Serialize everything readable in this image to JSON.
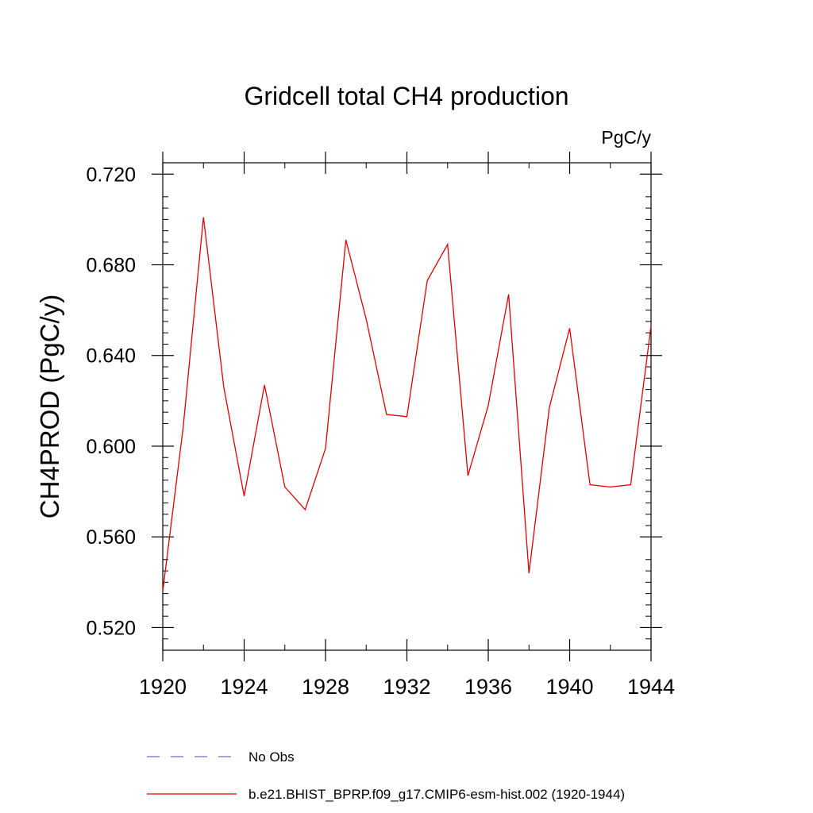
{
  "chart_data": {
    "type": "line",
    "title": "Gridcell total CH4 production",
    "units_label": "PgC/y",
    "ylabel": "CH4PROD  (PgC/y)",
    "xlabel": "",
    "xlim": [
      1920,
      1944
    ],
    "ylim": [
      0.51,
      0.725
    ],
    "x_ticks": [
      "1920",
      "1924",
      "1928",
      "1932",
      "1936",
      "1940",
      "1944"
    ],
    "y_ticks": [
      "0.520",
      "0.560",
      "0.600",
      "0.640",
      "0.680",
      "0.720"
    ],
    "grid": false,
    "legend_position": "bottom",
    "series": [
      {
        "name": "No Obs",
        "color": "#6e6ec8",
        "line_style": "dashed",
        "x": [],
        "values": []
      },
      {
        "name": "b.e21.BHIST_BPRP.f09_g17.CMIP6-esm-hist.002 (1920-1944)",
        "color": "#e00000",
        "line_style": "solid",
        "x": [
          1920,
          1921,
          1922,
          1923,
          1924,
          1925,
          1926,
          1927,
          1928,
          1929,
          1930,
          1931,
          1932,
          1933,
          1934,
          1935,
          1936,
          1937,
          1938,
          1939,
          1940,
          1941,
          1942,
          1943,
          1944
        ],
        "values": [
          0.536,
          0.608,
          0.701,
          0.626,
          0.578,
          0.627,
          0.582,
          0.572,
          0.599,
          0.691,
          0.656,
          0.614,
          0.613,
          0.673,
          0.689,
          0.587,
          0.618,
          0.667,
          0.544,
          0.617,
          0.652,
          0.583,
          0.582,
          0.583,
          0.653
        ]
      }
    ]
  }
}
